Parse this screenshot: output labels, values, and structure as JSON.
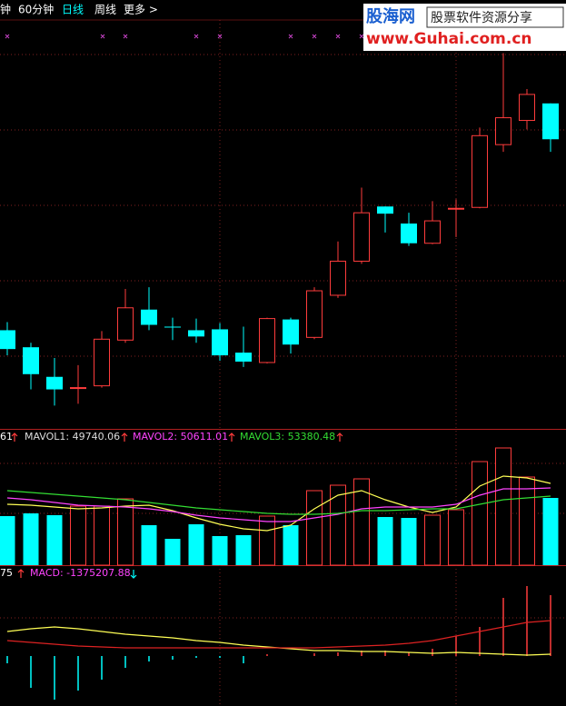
{
  "toolbar": {
    "tabs": [
      "钟",
      "60分钟",
      "日线",
      "周线",
      "更多 >"
    ],
    "active": 2
  },
  "watermark": {
    "brand": "股海网",
    "slogan": "股票软件资源分享",
    "url": "www.Guhai.com.cn"
  },
  "chart_data": [
    {
      "type": "candlestick",
      "open": [
        136,
        117,
        84,
        71,
        74,
        125,
        159,
        140,
        136,
        137,
        111,
        100,
        148,
        128,
        175,
        213,
        274,
        255,
        233,
        271,
        273,
        343,
        370,
        389
      ],
      "close": [
        115,
        87,
        70,
        72,
        126,
        161,
        142,
        139,
        129,
        108,
        101,
        149,
        120,
        180,
        213,
        267,
        266,
        233,
        258,
        272,
        353,
        373,
        399,
        349
      ],
      "high": [
        145,
        122,
        105,
        97,
        135,
        182,
        184,
        150,
        149,
        144,
        140,
        150,
        150,
        184,
        235,
        295,
        274,
        267,
        280,
        282,
        362,
        445,
        405,
        389
      ],
      "low": [
        108,
        70,
        52,
        54,
        72,
        122,
        136,
        125,
        122,
        102,
        95,
        99,
        110,
        126,
        172,
        210,
        245,
        230,
        232,
        240,
        272,
        335,
        360,
        335
      ],
      "up_color": "#ff3c3c",
      "down_color": "#00ffff",
      "ylim": [
        28,
        480
      ]
    },
    {
      "type": "volume",
      "lead_label": "61",
      "values": [
        43200,
        45600,
        44000,
        52000,
        52000,
        58400,
        35200,
        23200,
        36000,
        25600,
        26400,
        43200,
        35200,
        65600,
        70400,
        76000,
        42400,
        41600,
        44000,
        48800,
        91200,
        103200,
        77600,
        59200
      ],
      "series": [
        {
          "name": "MAVOL1: 49740.06",
          "color": "#ffff55",
          "values": [
            53600,
            52800,
            51200,
            49600,
            50400,
            52000,
            52800,
            48000,
            41600,
            36000,
            32000,
            30400,
            35200,
            49600,
            61600,
            65600,
            57600,
            51200,
            46400,
            51200,
            69600,
            78400,
            76800,
            72000
          ]
        },
        {
          "name": "MAVOL2: 50611.01",
          "color": "#ff44ff",
          "values": [
            59200,
            57600,
            55200,
            52800,
            52000,
            51200,
            49600,
            47200,
            44000,
            41600,
            40000,
            38400,
            38400,
            41600,
            44800,
            49600,
            51200,
            51200,
            51200,
            53600,
            61600,
            67200,
            67200,
            68000
          ]
        },
        {
          "name": "MAVOL3: 53380.48",
          "color": "#33dd33",
          "values": [
            65600,
            64000,
            62400,
            60800,
            59200,
            57600,
            55200,
            52800,
            50400,
            48800,
            47200,
            45600,
            44800,
            44800,
            45600,
            48000,
            48000,
            48800,
            49600,
            49600,
            53600,
            57600,
            59200,
            60800
          ]
        }
      ],
      "ylim": [
        0,
        108000
      ]
    },
    {
      "type": "macd",
      "lead_label": "75",
      "name": "MACD: -1375207.88",
      "name_color": "#ff44ff",
      "values": [
        -240000,
        -1050000,
        -1440000,
        -1140000,
        -780000,
        -390000,
        -180000,
        -120000,
        -60000,
        -60000,
        -240000,
        60000,
        0,
        90000,
        120000,
        180000,
        180000,
        120000,
        240000,
        660000,
        960000,
        1920000,
        2310000,
        2010000
      ],
      "up_color": "#ff3c3c",
      "down_color": "#00ffff",
      "series": [
        {
          "color": "#ffff55",
          "values": [
            810000,
            900000,
            960000,
            900000,
            810000,
            720000,
            660000,
            600000,
            510000,
            450000,
            360000,
            300000,
            240000,
            180000,
            180000,
            150000,
            150000,
            120000,
            90000,
            120000,
            90000,
            60000,
            30000,
            60000
          ]
        },
        {
          "color": "#dd2222",
          "values": [
            510000,
            450000,
            390000,
            330000,
            300000,
            270000,
            270000,
            270000,
            270000,
            270000,
            270000,
            270000,
            270000,
            270000,
            300000,
            330000,
            360000,
            420000,
            510000,
            660000,
            810000,
            960000,
            1110000,
            1170000
          ]
        }
      ],
      "ylim": [
        -1650000,
        2550000
      ]
    }
  ]
}
